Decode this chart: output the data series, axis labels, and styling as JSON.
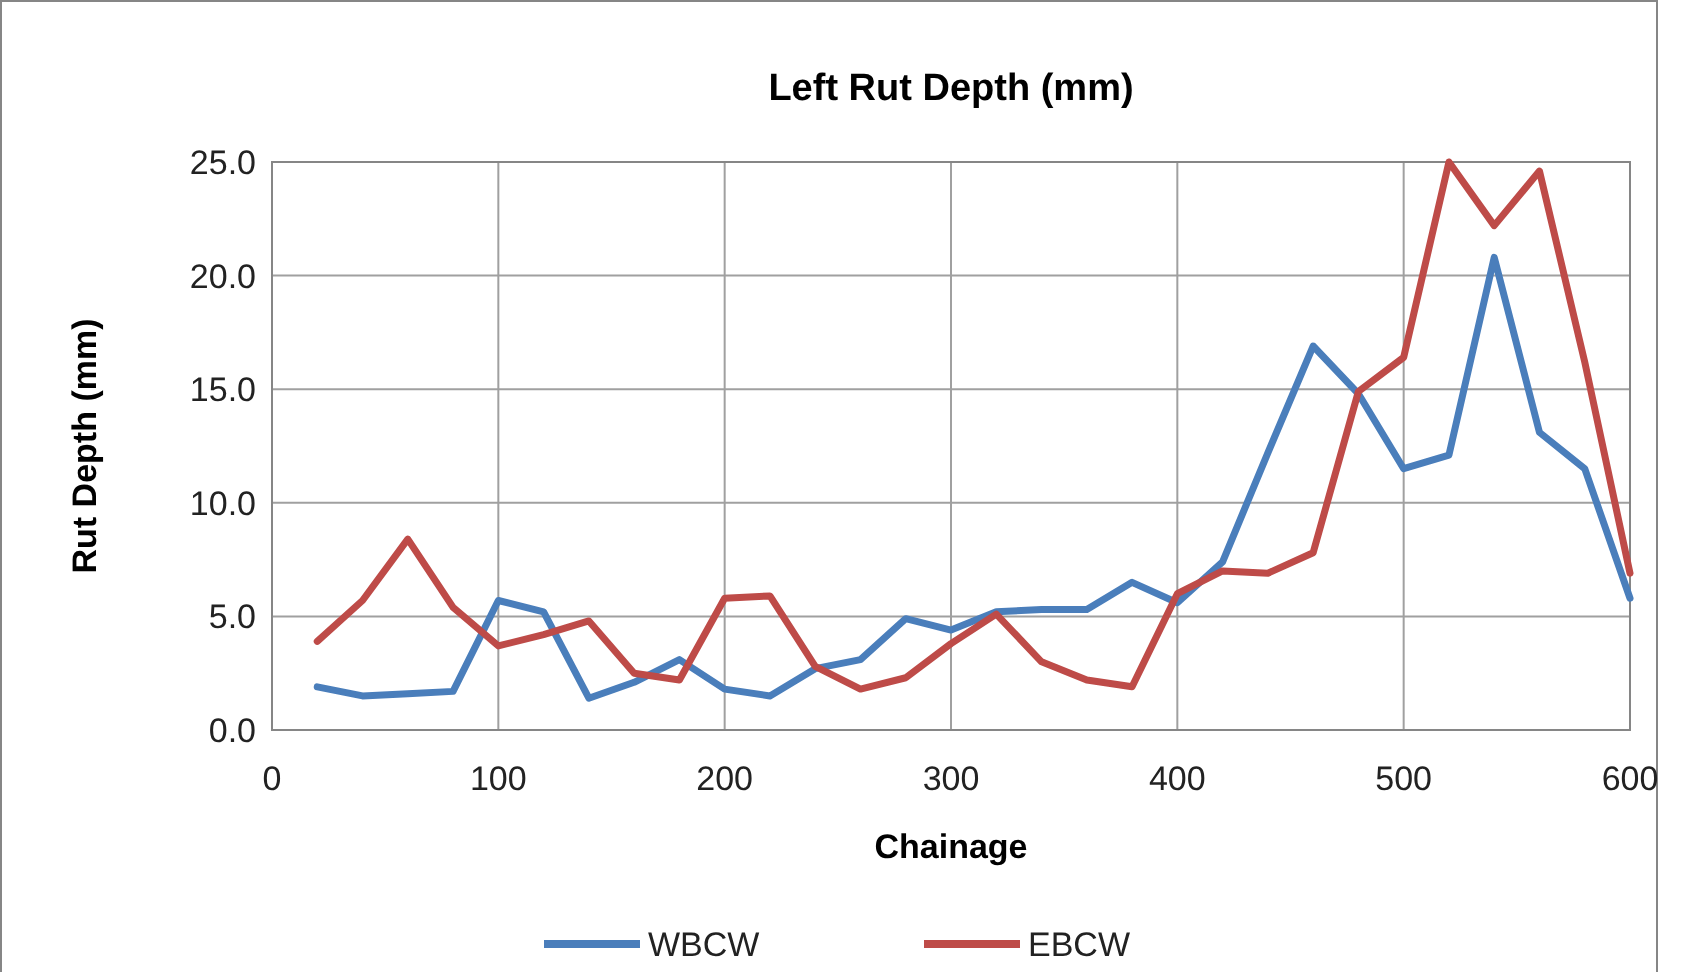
{
  "chart_data": {
    "type": "line",
    "title": "Left Rut Depth (mm)",
    "xlabel": "Chainage",
    "ylabel": "Rut Depth  (mm)",
    "x": [
      20,
      40,
      60,
      80,
      100,
      120,
      140,
      160,
      180,
      200,
      220,
      240,
      260,
      280,
      300,
      320,
      340,
      360,
      380,
      400,
      420,
      440,
      460,
      480,
      500,
      520,
      540,
      560,
      580,
      600
    ],
    "series": [
      {
        "name": "WBCW",
        "color": "#4a7ebb",
        "values": [
          1.9,
          1.5,
          1.6,
          1.7,
          5.7,
          5.2,
          1.4,
          2.1,
          3.1,
          1.8,
          1.5,
          2.7,
          3.1,
          4.9,
          4.4,
          5.2,
          5.3,
          5.3,
          6.5,
          5.6,
          7.4,
          12.2,
          16.9,
          14.8,
          11.5,
          12.1,
          20.8,
          13.1,
          11.5,
          5.8
        ]
      },
      {
        "name": "EBCW",
        "color": "#be4b48",
        "values": [
          3.9,
          5.7,
          8.4,
          5.4,
          3.7,
          4.2,
          4.8,
          2.5,
          2.2,
          5.8,
          5.9,
          2.8,
          1.8,
          2.3,
          3.8,
          5.1,
          3.0,
          2.2,
          1.9,
          6.0,
          7.0,
          6.9,
          7.8,
          14.9,
          16.4,
          25.0,
          22.2,
          24.6,
          16.2,
          6.9
        ]
      }
    ],
    "xlim": [
      0,
      600
    ],
    "xticks": [
      0,
      100,
      200,
      300,
      400,
      500,
      600
    ],
    "ylim": [
      0,
      25
    ],
    "yticks": [
      {
        "value": 0,
        "label": "0.0"
      },
      {
        "value": 5,
        "label": "5.0"
      },
      {
        "value": 10,
        "label": "10.0"
      },
      {
        "value": 15,
        "label": "15.0"
      },
      {
        "value": 20,
        "label": "20.0"
      },
      {
        "value": 25,
        "label": "25.0"
      }
    ],
    "grid": true,
    "legend": "bottom",
    "marker": "none",
    "line_style": "solid"
  }
}
